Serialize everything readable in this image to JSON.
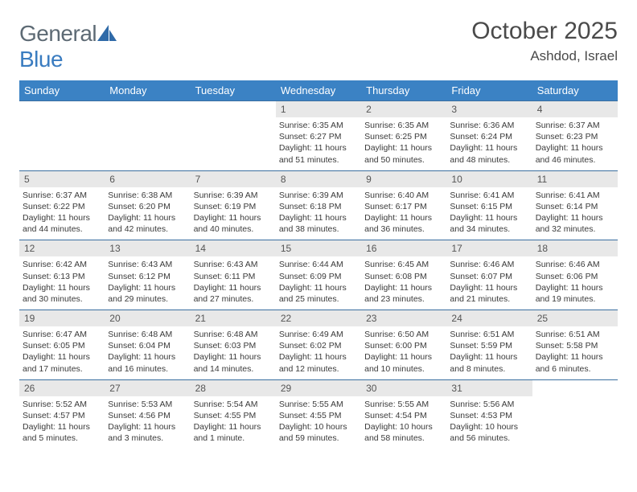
{
  "brand": {
    "part1": "General",
    "part2": "Blue"
  },
  "title": "October 2025",
  "location": "Ashdod, Israel",
  "colors": {
    "header_bg": "#3b82c4",
    "header_text": "#ffffff",
    "daynum_bg": "#e8e8e8",
    "row_border": "#3b6fa0",
    "body_text": "#3a3a3a",
    "brand_gray": "#5d6a74",
    "brand_blue": "#3a7cc0"
  },
  "day_headers": [
    "Sunday",
    "Monday",
    "Tuesday",
    "Wednesday",
    "Thursday",
    "Friday",
    "Saturday"
  ],
  "weeks": [
    [
      {
        "n": "",
        "lines": []
      },
      {
        "n": "",
        "lines": []
      },
      {
        "n": "",
        "lines": []
      },
      {
        "n": "1",
        "lines": [
          "Sunrise: 6:35 AM",
          "Sunset: 6:27 PM",
          "Daylight: 11 hours and 51 minutes."
        ]
      },
      {
        "n": "2",
        "lines": [
          "Sunrise: 6:35 AM",
          "Sunset: 6:25 PM",
          "Daylight: 11 hours and 50 minutes."
        ]
      },
      {
        "n": "3",
        "lines": [
          "Sunrise: 6:36 AM",
          "Sunset: 6:24 PM",
          "Daylight: 11 hours and 48 minutes."
        ]
      },
      {
        "n": "4",
        "lines": [
          "Sunrise: 6:37 AM",
          "Sunset: 6:23 PM",
          "Daylight: 11 hours and 46 minutes."
        ]
      }
    ],
    [
      {
        "n": "5",
        "lines": [
          "Sunrise: 6:37 AM",
          "Sunset: 6:22 PM",
          "Daylight: 11 hours and 44 minutes."
        ]
      },
      {
        "n": "6",
        "lines": [
          "Sunrise: 6:38 AM",
          "Sunset: 6:20 PM",
          "Daylight: 11 hours and 42 minutes."
        ]
      },
      {
        "n": "7",
        "lines": [
          "Sunrise: 6:39 AM",
          "Sunset: 6:19 PM",
          "Daylight: 11 hours and 40 minutes."
        ]
      },
      {
        "n": "8",
        "lines": [
          "Sunrise: 6:39 AM",
          "Sunset: 6:18 PM",
          "Daylight: 11 hours and 38 minutes."
        ]
      },
      {
        "n": "9",
        "lines": [
          "Sunrise: 6:40 AM",
          "Sunset: 6:17 PM",
          "Daylight: 11 hours and 36 minutes."
        ]
      },
      {
        "n": "10",
        "lines": [
          "Sunrise: 6:41 AM",
          "Sunset: 6:15 PM",
          "Daylight: 11 hours and 34 minutes."
        ]
      },
      {
        "n": "11",
        "lines": [
          "Sunrise: 6:41 AM",
          "Sunset: 6:14 PM",
          "Daylight: 11 hours and 32 minutes."
        ]
      }
    ],
    [
      {
        "n": "12",
        "lines": [
          "Sunrise: 6:42 AM",
          "Sunset: 6:13 PM",
          "Daylight: 11 hours and 30 minutes."
        ]
      },
      {
        "n": "13",
        "lines": [
          "Sunrise: 6:43 AM",
          "Sunset: 6:12 PM",
          "Daylight: 11 hours and 29 minutes."
        ]
      },
      {
        "n": "14",
        "lines": [
          "Sunrise: 6:43 AM",
          "Sunset: 6:11 PM",
          "Daylight: 11 hours and 27 minutes."
        ]
      },
      {
        "n": "15",
        "lines": [
          "Sunrise: 6:44 AM",
          "Sunset: 6:09 PM",
          "Daylight: 11 hours and 25 minutes."
        ]
      },
      {
        "n": "16",
        "lines": [
          "Sunrise: 6:45 AM",
          "Sunset: 6:08 PM",
          "Daylight: 11 hours and 23 minutes."
        ]
      },
      {
        "n": "17",
        "lines": [
          "Sunrise: 6:46 AM",
          "Sunset: 6:07 PM",
          "Daylight: 11 hours and 21 minutes."
        ]
      },
      {
        "n": "18",
        "lines": [
          "Sunrise: 6:46 AM",
          "Sunset: 6:06 PM",
          "Daylight: 11 hours and 19 minutes."
        ]
      }
    ],
    [
      {
        "n": "19",
        "lines": [
          "Sunrise: 6:47 AM",
          "Sunset: 6:05 PM",
          "Daylight: 11 hours and 17 minutes."
        ]
      },
      {
        "n": "20",
        "lines": [
          "Sunrise: 6:48 AM",
          "Sunset: 6:04 PM",
          "Daylight: 11 hours and 16 minutes."
        ]
      },
      {
        "n": "21",
        "lines": [
          "Sunrise: 6:48 AM",
          "Sunset: 6:03 PM",
          "Daylight: 11 hours and 14 minutes."
        ]
      },
      {
        "n": "22",
        "lines": [
          "Sunrise: 6:49 AM",
          "Sunset: 6:02 PM",
          "Daylight: 11 hours and 12 minutes."
        ]
      },
      {
        "n": "23",
        "lines": [
          "Sunrise: 6:50 AM",
          "Sunset: 6:00 PM",
          "Daylight: 11 hours and 10 minutes."
        ]
      },
      {
        "n": "24",
        "lines": [
          "Sunrise: 6:51 AM",
          "Sunset: 5:59 PM",
          "Daylight: 11 hours and 8 minutes."
        ]
      },
      {
        "n": "25",
        "lines": [
          "Sunrise: 6:51 AM",
          "Sunset: 5:58 PM",
          "Daylight: 11 hours and 6 minutes."
        ]
      }
    ],
    [
      {
        "n": "26",
        "lines": [
          "Sunrise: 5:52 AM",
          "Sunset: 4:57 PM",
          "Daylight: 11 hours and 5 minutes."
        ]
      },
      {
        "n": "27",
        "lines": [
          "Sunrise: 5:53 AM",
          "Sunset: 4:56 PM",
          "Daylight: 11 hours and 3 minutes."
        ]
      },
      {
        "n": "28",
        "lines": [
          "Sunrise: 5:54 AM",
          "Sunset: 4:55 PM",
          "Daylight: 11 hours and 1 minute."
        ]
      },
      {
        "n": "29",
        "lines": [
          "Sunrise: 5:55 AM",
          "Sunset: 4:55 PM",
          "Daylight: 10 hours and 59 minutes."
        ]
      },
      {
        "n": "30",
        "lines": [
          "Sunrise: 5:55 AM",
          "Sunset: 4:54 PM",
          "Daylight: 10 hours and 58 minutes."
        ]
      },
      {
        "n": "31",
        "lines": [
          "Sunrise: 5:56 AM",
          "Sunset: 4:53 PM",
          "Daylight: 10 hours and 56 minutes."
        ]
      },
      {
        "n": "",
        "lines": []
      }
    ]
  ]
}
